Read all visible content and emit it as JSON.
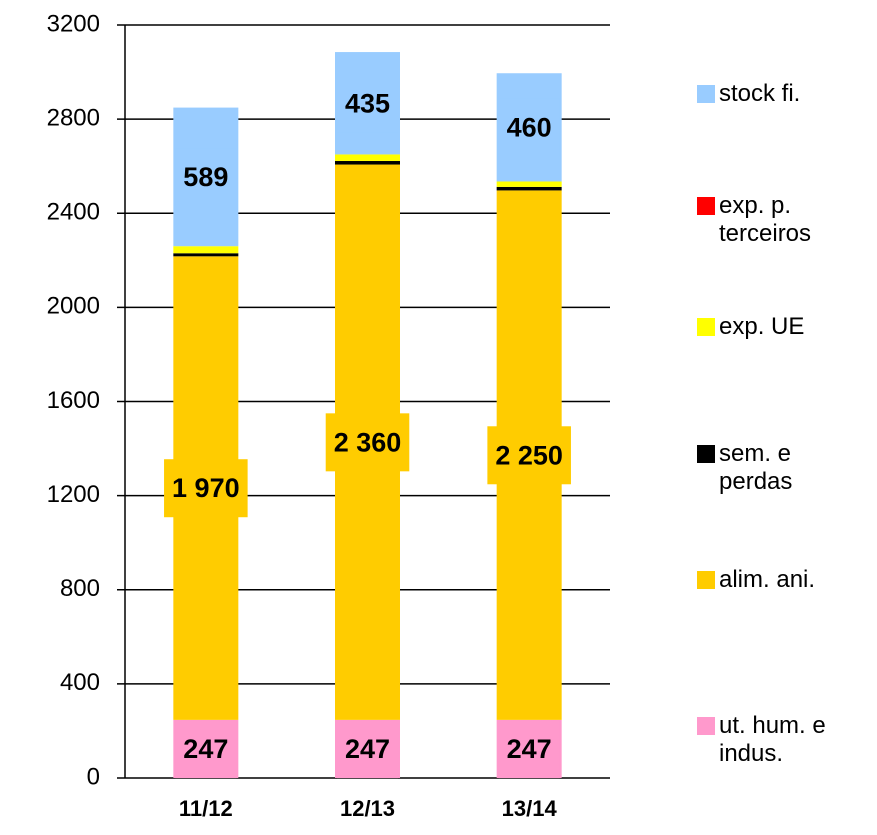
{
  "chart_data": {
    "type": "stacked_bar",
    "categories": [
      "11/12",
      "12/13",
      "13/14"
    ],
    "series": [
      {
        "name": "ut. hum. e indus.",
        "color": "#ff99cc",
        "values": [
          247,
          247,
          247
        ],
        "show_labels": true
      },
      {
        "name": "alim. ani.",
        "color": "#ffcc00",
        "values": [
          1970,
          2360,
          2250
        ],
        "value_labels": [
          "1 970",
          "2 360",
          "2 250"
        ],
        "show_labels": true
      },
      {
        "name": "sem. e perdas",
        "color": "#000000",
        "values": [
          13,
          15,
          15
        ]
      },
      {
        "name": "exp. UE",
        "color": "#ffff00",
        "values": [
          30,
          28,
          23
        ]
      },
      {
        "name": "exp. p. terceiros",
        "color": "#ff0000",
        "values": [
          0,
          0,
          0
        ]
      },
      {
        "name": "stock fi.",
        "color": "#99ccff",
        "values": [
          589,
          435,
          460
        ],
        "show_labels": true
      }
    ],
    "ylim": [
      0,
      3200
    ],
    "yticks": [
      0,
      400,
      800,
      1200,
      1600,
      2000,
      2400,
      2800,
      3200
    ],
    "grid": true
  }
}
